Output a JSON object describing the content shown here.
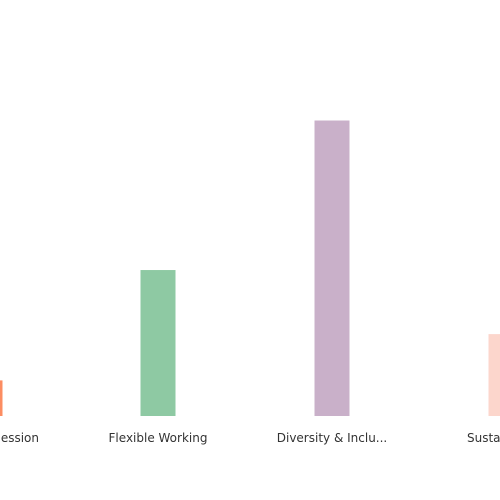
{
  "chart_data": {
    "type": "bar",
    "categories": [
      "Career Progression",
      "Flexible Working",
      "Diversity & Inclu...",
      "Sustainability"
    ],
    "tick_labels": [
      "ession",
      "Flexible Working",
      "Diversity & Inclu...",
      "Sustai"
    ],
    "values": [
      10,
      41,
      83,
      23
    ],
    "ylim": [
      0,
      100
    ],
    "grid": false,
    "legend": "none",
    "colors": [
      "#fc8d62",
      "#8ec9a3",
      "#c9b0c9",
      "#fcd6cc"
    ]
  }
}
